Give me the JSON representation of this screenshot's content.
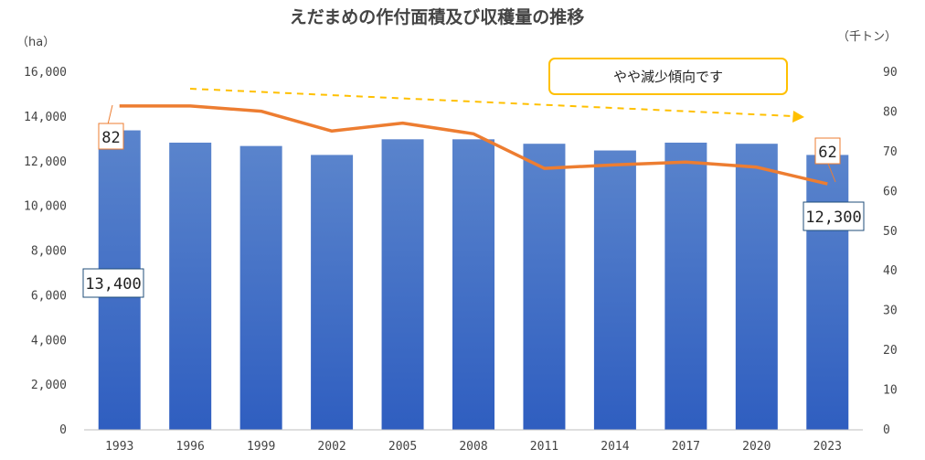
{
  "chart_data": {
    "type": "bar+line",
    "title": "えだまめの作付面積及び収穫量の推移",
    "left_unit": "（ha）",
    "right_unit": "（千トン）",
    "categories": [
      "1993",
      "1996",
      "1999",
      "2002",
      "2005",
      "2008",
      "2011",
      "2014",
      "2017",
      "2020",
      "2023"
    ],
    "series": [
      {
        "type": "bar",
        "axis": "left",
        "color": "#4472C4",
        "values": [
          13400,
          12850,
          12700,
          12300,
          13000,
          13000,
          12800,
          12500,
          12850,
          12800,
          12300
        ]
      },
      {
        "type": "line",
        "axis": "right",
        "color": "#ED7D31",
        "values": [
          81.5,
          81.5,
          80.2,
          75.2,
          77.2,
          74.5,
          65.8,
          66.7,
          67.4,
          66.1,
          61.9
        ]
      }
    ],
    "left_axis": {
      "min": 0,
      "max": 16000,
      "step": 2000,
      "tick_labels": [
        "0",
        "2,000",
        "4,000",
        "6,000",
        "8,000",
        "10,000",
        "12,000",
        "14,000",
        "16,000"
      ]
    },
    "right_axis": {
      "min": 0,
      "max": 90,
      "step": 10,
      "tick_labels": [
        "0",
        "10",
        "20",
        "30",
        "40",
        "50",
        "60",
        "70",
        "80",
        "90"
      ]
    },
    "gridlines": false,
    "callouts": {
      "bar_first": "13,400",
      "bar_last": "12,300",
      "line_first": "82",
      "line_last": "62"
    },
    "annotation": "やや減少傾向です",
    "trend_arrow_color": "#FFC000"
  }
}
